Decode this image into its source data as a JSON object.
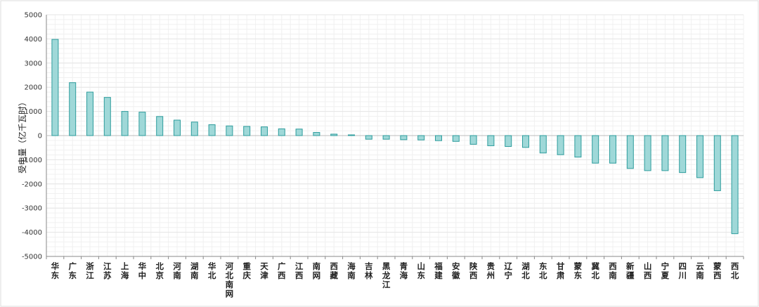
{
  "chart_data": {
    "type": "bar",
    "title": "",
    "xlabel": "",
    "ylabel": "受电量（亿千瓦时）",
    "ylim": [
      -5000,
      5000
    ],
    "yticks": [
      5000,
      4000,
      3000,
      2000,
      1000,
      0,
      -1000,
      -2000,
      -3000,
      -4000,
      -5000
    ],
    "grid": true,
    "legend": "none",
    "colors": {
      "bar_fill": "#9fd8d8",
      "bar_stroke": "#2e9d9d",
      "grid": "#e6e6e6",
      "axis": "#8a8a8a"
    },
    "categories": [
      "华东",
      "广东",
      "浙江",
      "江苏",
      "上海",
      "华中",
      "北京",
      "河南",
      "湖南",
      "华北",
      "河北南网",
      "重庆",
      "天津",
      "广西",
      "江西",
      "南网",
      "西藏",
      "海南",
      "吉林",
      "黑龙江",
      "青海",
      "山东",
      "福建",
      "安徽",
      "陕西",
      "贵州",
      "辽宁",
      "湖北",
      "东北",
      "甘肃",
      "蒙东",
      "冀北",
      "西南",
      "新疆",
      "山西",
      "宁夏",
      "四川",
      "云南",
      "蒙西",
      "西北"
    ],
    "values": [
      3980,
      2190,
      1800,
      1580,
      1000,
      970,
      790,
      640,
      560,
      450,
      400,
      380,
      360,
      280,
      270,
      130,
      60,
      30,
      -150,
      -150,
      -170,
      -180,
      -210,
      -240,
      -360,
      -420,
      -450,
      -490,
      -720,
      -790,
      -890,
      -1140,
      -1140,
      -1360,
      -1450,
      -1450,
      -1530,
      -1740,
      -2280,
      -4060
    ]
  }
}
